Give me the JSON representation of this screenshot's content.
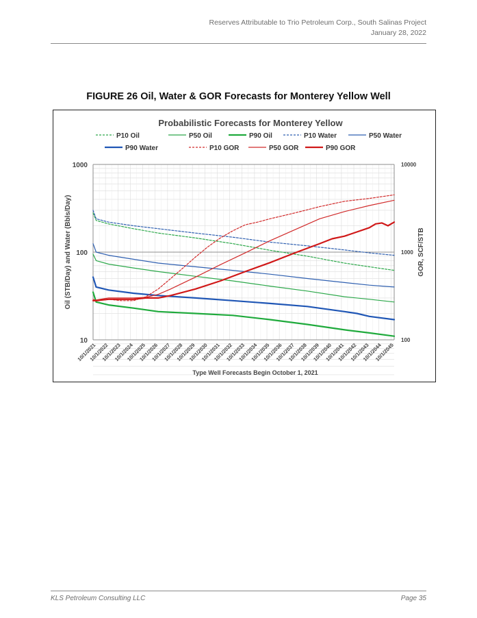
{
  "header": {
    "line1": "Reserves Attributable to Trio Petroleum Corp., South Salinas Project",
    "line2": "January 28, 2022"
  },
  "figure": {
    "title": "FIGURE 26 Oil, Water & GOR Forecasts for Monterey Yellow Well"
  },
  "footer": {
    "company": "KLS Petroleum Consulting LLC",
    "page": "Page 35"
  },
  "chart_data": {
    "type": "line",
    "title": "Probabilistic Forecasts for Monterey Yellow",
    "xlabel": "Type Well Forecasts Begin October 1, 2021",
    "ylabel": "Oil (STB/Day) and Water (Bbls/Day)",
    "y2label": "GOR, SCF/STB",
    "y_scale": "log",
    "ylim": [
      10,
      1000
    ],
    "y2lim": [
      100,
      10000
    ],
    "y_ticks": [
      "1000",
      "100",
      "10"
    ],
    "y2_ticks": [
      "10000",
      "1000",
      "100"
    ],
    "x_start": 2021.75,
    "x_end": 2046.0,
    "x_tick_labels": [
      "10/1/2021",
      "10/1/2022",
      "10/1/2023",
      "10/1/2024",
      "10/1/2025",
      "10/1/2026",
      "10/1/2027",
      "10/1/2028",
      "10/1/2029",
      "10/1/2030",
      "10/1/2031",
      "10/1/2032",
      "10/1/2033",
      "10/1/2034",
      "10/1/2035",
      "10/1/2036",
      "10/1/2037",
      "10/1/2038",
      "10/1/2039",
      "10/1/2040",
      "10/1/2041",
      "10/1/2042",
      "10/1/2043",
      "10/1/2044",
      "10/1/2045"
    ],
    "grid": true,
    "legend": "top",
    "series": [
      {
        "name": "P10 Oil",
        "axis": "left",
        "color": "#2ca84a",
        "width": 1.2,
        "dash": "3,2",
        "x": [
          2021.75,
          2022.0,
          2023,
          2025,
          2027,
          2030,
          2033,
          2036,
          2039,
          2042,
          2044,
          2046
        ],
        "y": [
          280,
          230,
          210,
          185,
          165,
          145,
          125,
          105,
          90,
          75,
          68,
          62
        ]
      },
      {
        "name": "P50 Oil",
        "axis": "left",
        "color": "#2ca84a",
        "width": 1.2,
        "dash": "",
        "x": [
          2021.75,
          2022.0,
          2023,
          2025,
          2027,
          2030,
          2033,
          2036,
          2039,
          2042,
          2044,
          2046
        ],
        "y": [
          95,
          80,
          73,
          66,
          60,
          53,
          47,
          41,
          36,
          31,
          29,
          27
        ]
      },
      {
        "name": "P90 Oil",
        "axis": "left",
        "color": "#1faa3c",
        "width": 2.2,
        "dash": "",
        "x": [
          2021.75,
          2022.0,
          2023,
          2025,
          2027,
          2030,
          2033,
          2036,
          2039,
          2042,
          2044,
          2046
        ],
        "y": [
          35,
          27,
          25,
          23,
          21,
          20,
          19,
          17,
          15,
          13,
          12,
          11
        ]
      },
      {
        "name": "P10 Water",
        "axis": "left",
        "color": "#2e5fb0",
        "width": 1.2,
        "dash": "3,2",
        "x": [
          2021.75,
          2022.0,
          2023,
          2025,
          2027,
          2030,
          2033,
          2036,
          2039,
          2042,
          2044,
          2046
        ],
        "y": [
          300,
          240,
          220,
          200,
          185,
          165,
          148,
          130,
          118,
          106,
          98,
          92
        ]
      },
      {
        "name": "P50 Water",
        "axis": "left",
        "color": "#2e5fb0",
        "width": 1.2,
        "dash": "",
        "x": [
          2021.75,
          2022.0,
          2023,
          2025,
          2027,
          2030,
          2033,
          2036,
          2039,
          2042,
          2044,
          2046
        ],
        "y": [
          125,
          100,
          92,
          83,
          75,
          68,
          62,
          56,
          50,
          45,
          42,
          40
        ]
      },
      {
        "name": "P90 Water",
        "axis": "left",
        "color": "#1f56b5",
        "width": 2.2,
        "dash": "",
        "x": [
          2021.75,
          2022.0,
          2023,
          2025,
          2027,
          2030,
          2033,
          2036,
          2039,
          2042,
          2043,
          2044,
          2046
        ],
        "y": [
          52,
          40,
          37,
          34,
          32,
          30,
          28,
          26,
          24,
          21,
          20,
          18.5,
          17
        ]
      },
      {
        "name": "P10 GOR",
        "axis": "right",
        "color": "#d12a2a",
        "width": 1.2,
        "dash": "3,2",
        "x": [
          2021.75,
          2022.0,
          2023,
          2024,
          2025,
          2026,
          2027,
          2028,
          2029,
          2030,
          2031,
          2032,
          2033,
          2034,
          2035,
          2036,
          2038,
          2040,
          2042,
          2044,
          2046
        ],
        "y": [
          290,
          280,
          290,
          280,
          280,
          310,
          380,
          500,
          660,
          880,
          1150,
          1450,
          1750,
          2050,
          2200,
          2400,
          2800,
          3300,
          3800,
          4100,
          4500
        ]
      },
      {
        "name": "P50 GOR",
        "axis": "right",
        "color": "#d12a2a",
        "width": 1.2,
        "dash": "",
        "x": [
          2021.75,
          2022.0,
          2023,
          2024,
          2025,
          2026,
          2027,
          2028,
          2030,
          2032,
          2034,
          2036,
          2038,
          2040,
          2042,
          2044,
          2046
        ],
        "y": [
          280,
          285,
          300,
          300,
          300,
          305,
          330,
          380,
          520,
          720,
          980,
          1350,
          1800,
          2400,
          2900,
          3400,
          3900
        ]
      },
      {
        "name": "P90 GOR",
        "axis": "right",
        "color": "#d01818",
        "width": 2.2,
        "dash": "",
        "x": [
          2021.75,
          2022.0,
          2023,
          2024,
          2025,
          2026,
          2027,
          2028,
          2030,
          2032,
          2034,
          2036,
          2038,
          2040,
          2041,
          2042,
          2043,
          2044,
          2044.5,
          2045,
          2045.5,
          2046
        ],
        "y": [
          280,
          280,
          290,
          290,
          290,
          300,
          300,
          320,
          380,
          470,
          600,
          760,
          980,
          1250,
          1420,
          1520,
          1700,
          1900,
          2100,
          2150,
          2000,
          2200
        ]
      }
    ]
  }
}
